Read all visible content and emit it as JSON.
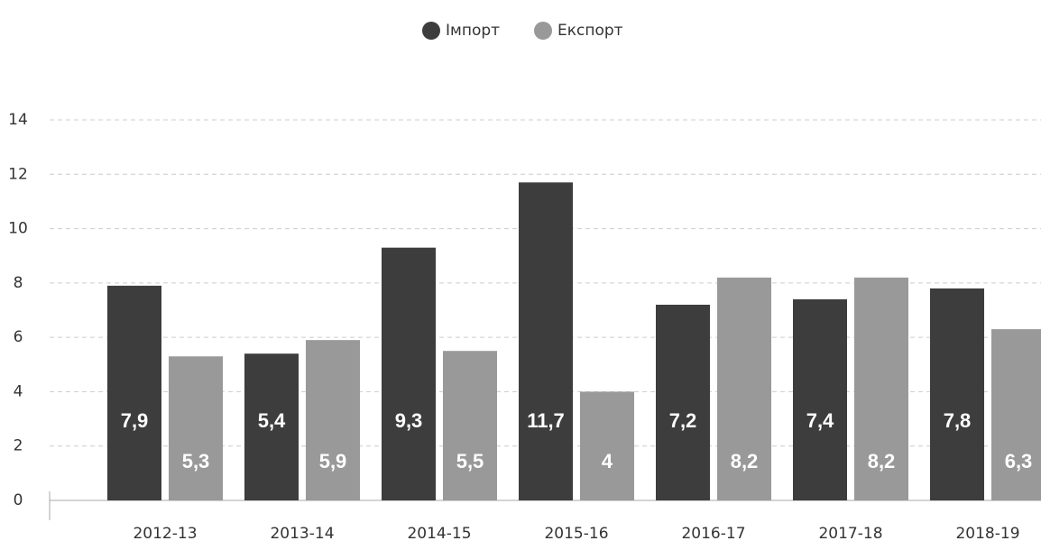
{
  "chart_data": {
    "type": "bar",
    "categories": [
      "2012-13",
      "2013-14",
      "2014-15",
      "2015-16",
      "2016-17",
      "2017-18",
      "2018-19"
    ],
    "series": [
      {
        "name": "Імпорт",
        "color": "#3d3d3d",
        "values": [
          7.9,
          5.4,
          9.3,
          11.7,
          7.2,
          7.4,
          7.8
        ],
        "value_labels": [
          "7,9",
          "5,4",
          "9,3",
          "11,7",
          "7,2",
          "7,4",
          "7,8"
        ]
      },
      {
        "name": "Експорт",
        "color": "#999999",
        "values": [
          5.3,
          5.9,
          5.5,
          4,
          8.2,
          8.2,
          6.3
        ],
        "value_labels": [
          "5,3",
          "5,9",
          "5,5",
          "4",
          "8,2",
          "8,2",
          "6,3"
        ]
      }
    ],
    "ylim": [
      0,
      14
    ],
    "yticks": [
      0,
      2,
      4,
      6,
      8,
      10,
      12,
      14
    ],
    "grid": true,
    "legend": "top"
  }
}
